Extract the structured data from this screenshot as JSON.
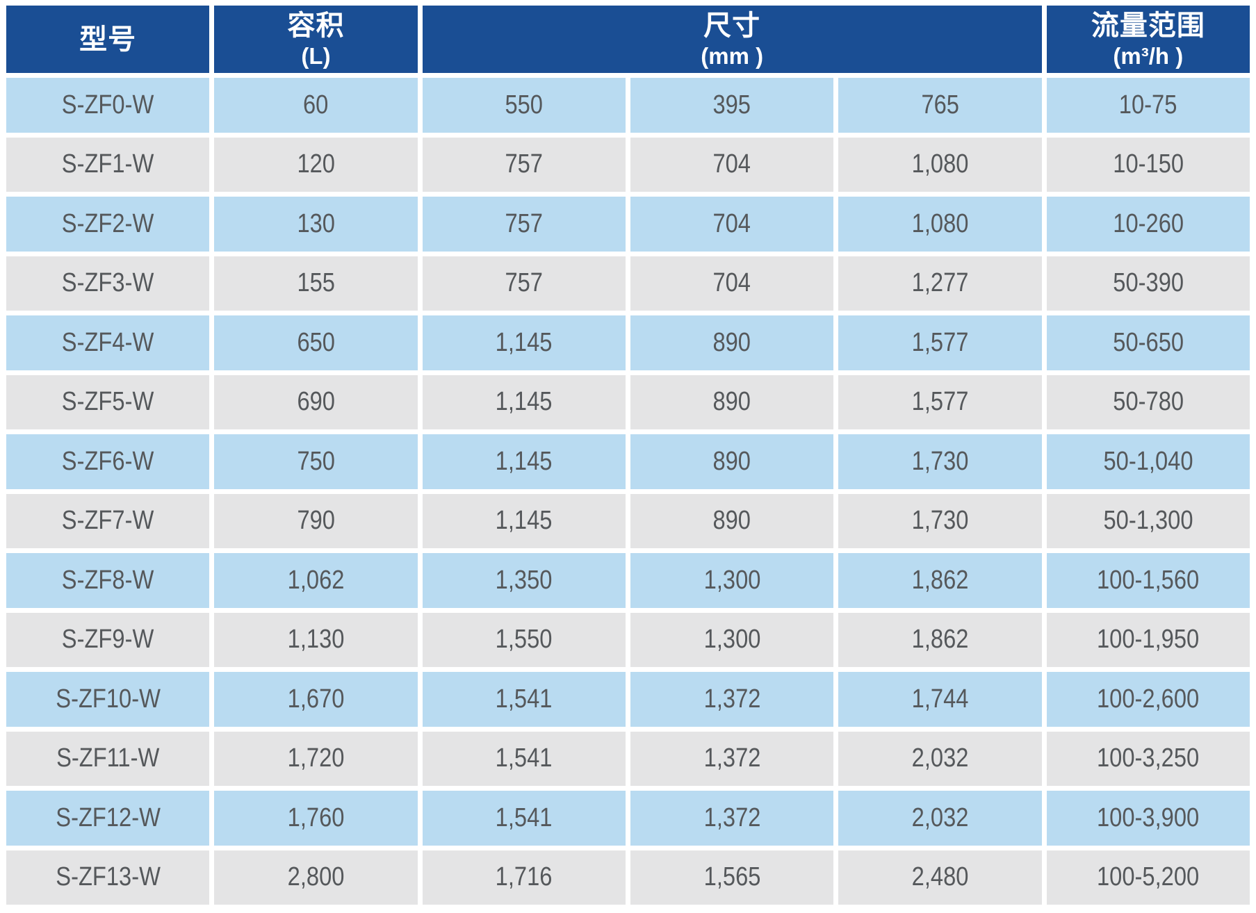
{
  "colors": {
    "header_bg": "#1a4e94",
    "header_text": "#ffffff",
    "row_blue": "#b9dbf1",
    "row_gray": "#e4e4e5",
    "cell_text": "#55585b",
    "page_bg": "#ffffff"
  },
  "table": {
    "columns": [
      {
        "label": "型号",
        "unit": ""
      },
      {
        "label": "容积",
        "unit": "(L)"
      },
      {
        "label": "尺寸",
        "unit": "(mm )",
        "span": 3
      },
      {
        "label": "流量范围",
        "unit": "(m³/h )"
      }
    ],
    "rows": [
      {
        "model": "S-ZF0-W",
        "volume": "60",
        "dims": [
          "550",
          "395",
          "765"
        ],
        "flow": "10-75"
      },
      {
        "model": "S-ZF1-W",
        "volume": "120",
        "dims": [
          "757",
          "704",
          "1,080"
        ],
        "flow": "10-150"
      },
      {
        "model": "S-ZF2-W",
        "volume": "130",
        "dims": [
          "757",
          "704",
          "1,080"
        ],
        "flow": "10-260"
      },
      {
        "model": "S-ZF3-W",
        "volume": "155",
        "dims": [
          "757",
          "704",
          "1,277"
        ],
        "flow": "50-390"
      },
      {
        "model": "S-ZF4-W",
        "volume": "650",
        "dims": [
          "1,145",
          "890",
          "1,577"
        ],
        "flow": "50-650"
      },
      {
        "model": "S-ZF5-W",
        "volume": "690",
        "dims": [
          "1,145",
          "890",
          "1,577"
        ],
        "flow": "50-780"
      },
      {
        "model": "S-ZF6-W",
        "volume": "750",
        "dims": [
          "1,145",
          "890",
          "1,730"
        ],
        "flow": "50-1,040"
      },
      {
        "model": "S-ZF7-W",
        "volume": "790",
        "dims": [
          "1,145",
          "890",
          "1,730"
        ],
        "flow": "50-1,300"
      },
      {
        "model": "S-ZF8-W",
        "volume": "1,062",
        "dims": [
          "1,350",
          "1,300",
          "1,862"
        ],
        "flow": "100-1,560"
      },
      {
        "model": "S-ZF9-W",
        "volume": "1,130",
        "dims": [
          "1,550",
          "1,300",
          "1,862"
        ],
        "flow": "100-1,950"
      },
      {
        "model": "S-ZF10-W",
        "volume": "1,670",
        "dims": [
          "1,541",
          "1,372",
          "1,744"
        ],
        "flow": "100-2,600"
      },
      {
        "model": "S-ZF11-W",
        "volume": "1,720",
        "dims": [
          "1,541",
          "1,372",
          "2,032"
        ],
        "flow": "100-3,250"
      },
      {
        "model": "S-ZF12-W",
        "volume": "1,760",
        "dims": [
          "1,541",
          "1,372",
          "2,032"
        ],
        "flow": "100-3,900"
      },
      {
        "model": "S-ZF13-W",
        "volume": "2,800",
        "dims": [
          "1,716",
          "1,565",
          "2,480"
        ],
        "flow": "100-5,200"
      }
    ]
  }
}
